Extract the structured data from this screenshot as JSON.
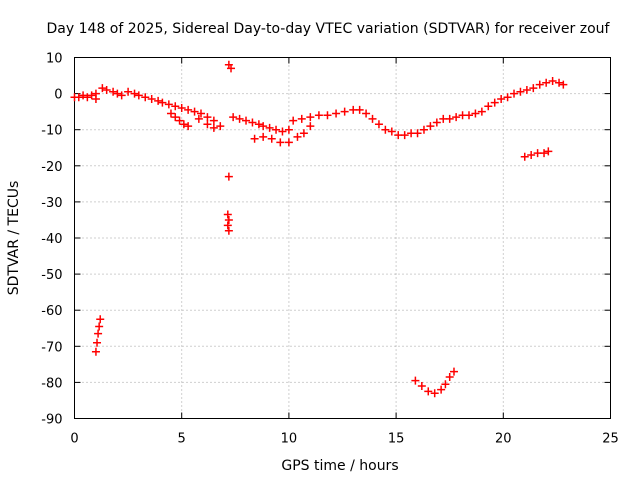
{
  "chart_data": {
    "type": "scatter",
    "title": "Day 148 of 2025, Sidereal Day-to-day VTEC variation (SDTVAR) for receiver zouf",
    "xlabel": "GPS time / hours",
    "ylabel": "SDTVAR / TECUs",
    "xlim": [
      0,
      25
    ],
    "ylim": [
      -90,
      10
    ],
    "xticks": [
      "0",
      "5",
      "10",
      "15",
      "20",
      "25"
    ],
    "yticks": [
      "10",
      "0",
      "-10",
      "-20",
      "-30",
      "-40",
      "-50",
      "-60",
      "-70",
      "-80",
      "-90"
    ],
    "grid": true,
    "marker": "plus",
    "series": [
      {
        "name": "SDTVAR",
        "color": "#ff0000",
        "points": [
          [
            0.0,
            -1.0
          ],
          [
            0.2,
            -1.0
          ],
          [
            0.4,
            -0.5
          ],
          [
            0.6,
            -1.0
          ],
          [
            0.8,
            -0.5
          ],
          [
            1.0,
            0.0
          ],
          [
            1.0,
            -1.5
          ],
          [
            1.3,
            1.5
          ],
          [
            1.5,
            1.0
          ],
          [
            1.8,
            0.5
          ],
          [
            2.0,
            0.0
          ],
          [
            2.2,
            -0.5
          ],
          [
            2.5,
            0.5
          ],
          [
            2.8,
            0.0
          ],
          [
            3.0,
            -0.5
          ],
          [
            3.3,
            -1.0
          ],
          [
            3.6,
            -1.5
          ],
          [
            3.9,
            -2.0
          ],
          [
            4.1,
            -2.5
          ],
          [
            4.4,
            -3.0
          ],
          [
            4.7,
            -3.5
          ],
          [
            5.0,
            -4.0
          ],
          [
            5.3,
            -4.5
          ],
          [
            5.6,
            -5.0
          ],
          [
            5.9,
            -5.5
          ],
          [
            6.2,
            -6.5
          ],
          [
            6.5,
            -7.5
          ],
          [
            6.8,
            -9.0
          ],
          [
            4.5,
            -5.5
          ],
          [
            4.7,
            -6.5
          ],
          [
            4.9,
            -7.5
          ],
          [
            5.1,
            -8.5
          ],
          [
            5.3,
            -9.0
          ],
          [
            5.8,
            -7.0
          ],
          [
            6.2,
            -8.5
          ],
          [
            6.5,
            -9.5
          ],
          [
            7.2,
            8.0
          ],
          [
            7.3,
            7.0
          ],
          [
            7.2,
            -23.0
          ],
          [
            7.15,
            -33.5
          ],
          [
            7.2,
            -35.0
          ],
          [
            7.15,
            -36.5
          ],
          [
            7.2,
            -38.0
          ],
          [
            7.4,
            -6.5
          ],
          [
            7.7,
            -7.0
          ],
          [
            8.0,
            -7.5
          ],
          [
            8.3,
            -8.0
          ],
          [
            8.6,
            -8.5
          ],
          [
            8.8,
            -9.0
          ],
          [
            9.1,
            -9.5
          ],
          [
            9.4,
            -10.0
          ],
          [
            9.7,
            -10.5
          ],
          [
            10.0,
            -10.0
          ],
          [
            8.4,
            -12.5
          ],
          [
            8.8,
            -12.0
          ],
          [
            9.2,
            -12.5
          ],
          [
            9.6,
            -13.5
          ],
          [
            10.0,
            -13.5
          ],
          [
            10.4,
            -12.0
          ],
          [
            10.7,
            -11.0
          ],
          [
            11.0,
            -9.0
          ],
          [
            10.2,
            -7.5
          ],
          [
            10.6,
            -7.0
          ],
          [
            11.0,
            -6.5
          ],
          [
            11.4,
            -6.0
          ],
          [
            11.8,
            -6.0
          ],
          [
            12.2,
            -5.5
          ],
          [
            12.6,
            -5.0
          ],
          [
            13.0,
            -4.5
          ],
          [
            13.3,
            -4.5
          ],
          [
            13.6,
            -5.5
          ],
          [
            13.9,
            -7.0
          ],
          [
            14.2,
            -8.5
          ],
          [
            14.5,
            -10.0
          ],
          [
            14.8,
            -10.5
          ],
          [
            15.1,
            -11.5
          ],
          [
            15.4,
            -11.5
          ],
          [
            15.7,
            -11.0
          ],
          [
            16.0,
            -11.0
          ],
          [
            16.3,
            -10.0
          ],
          [
            16.6,
            -9.0
          ],
          [
            16.9,
            -8.0
          ],
          [
            17.2,
            -7.0
          ],
          [
            17.5,
            -7.0
          ],
          [
            17.8,
            -6.5
          ],
          [
            18.1,
            -6.0
          ],
          [
            18.4,
            -6.0
          ],
          [
            18.7,
            -5.5
          ],
          [
            19.0,
            -5.0
          ],
          [
            19.3,
            -3.5
          ],
          [
            19.6,
            -2.5
          ],
          [
            19.9,
            -1.5
          ],
          [
            20.2,
            -1.0
          ],
          [
            20.5,
            0.0
          ],
          [
            20.8,
            0.5
          ],
          [
            21.1,
            1.0
          ],
          [
            21.4,
            1.5
          ],
          [
            21.7,
            2.5
          ],
          [
            22.0,
            3.0
          ],
          [
            22.3,
            3.5
          ],
          [
            22.6,
            3.0
          ],
          [
            22.8,
            2.5
          ],
          [
            21.0,
            -17.5
          ],
          [
            21.3,
            -17.0
          ],
          [
            21.6,
            -16.5
          ],
          [
            21.9,
            -16.5
          ],
          [
            22.1,
            -16.0
          ],
          [
            1.0,
            -71.5
          ],
          [
            1.05,
            -69.0
          ],
          [
            1.1,
            -66.5
          ],
          [
            1.15,
            -64.5
          ],
          [
            1.2,
            -62.5
          ],
          [
            15.9,
            -79.5
          ],
          [
            16.2,
            -81.0
          ],
          [
            16.5,
            -82.5
          ],
          [
            16.8,
            -83.0
          ],
          [
            17.1,
            -82.0
          ],
          [
            17.3,
            -80.5
          ],
          [
            17.5,
            -78.5
          ],
          [
            17.7,
            -77.0
          ]
        ]
      }
    ]
  }
}
